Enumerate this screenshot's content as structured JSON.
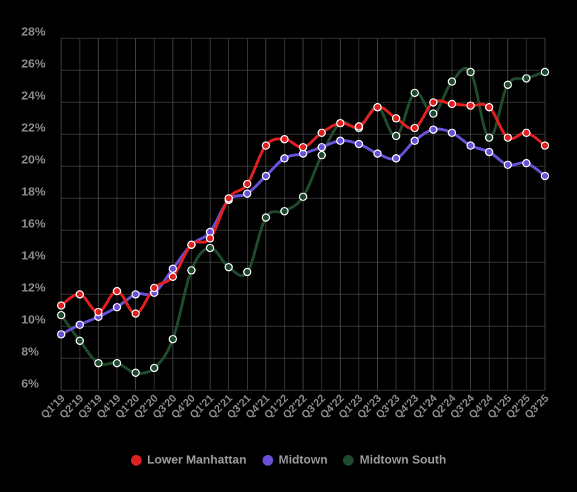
{
  "chart_data": {
    "type": "line",
    "categories": [
      "Q1'19",
      "Q2'19",
      "Q3'19",
      "Q4'19",
      "Q1'20",
      "Q2'20",
      "Q3'20",
      "Q4'20",
      "Q1'21",
      "Q2'21",
      "Q3'21",
      "Q4'21",
      "Q1'22",
      "Q2'22",
      "Q3'22",
      "Q4'22",
      "Q1'23",
      "Q2'23",
      "Q3'23",
      "Q4'23",
      "Q1'24",
      "Q2'24",
      "Q3'24",
      "Q4'24",
      "Q1'25",
      "Q2'25",
      "Q3'25"
    ],
    "y_ticks": [
      "6%",
      "8%",
      "10%",
      "12%",
      "14%",
      "16%",
      "18%",
      "20%",
      "22%",
      "24%",
      "26%",
      "28%"
    ],
    "ylim": [
      6,
      28
    ],
    "grid": true,
    "legend_position": "bottom",
    "series": [
      {
        "name": "Lower Manhattan",
        "color": "#e02020",
        "values": [
          11.3,
          12.0,
          10.9,
          12.2,
          10.8,
          12.4,
          13.1,
          15.1,
          15.5,
          18.0,
          18.9,
          21.3,
          21.7,
          21.2,
          22.1,
          22.7,
          22.5,
          23.7,
          23.0,
          22.4,
          24.0,
          23.9,
          23.8,
          23.7,
          21.8,
          22.1,
          21.3
        ]
      },
      {
        "name": "Midtown",
        "color": "#6a50d8",
        "values": [
          9.5,
          10.1,
          10.6,
          11.2,
          12.0,
          12.1,
          13.6,
          15.1,
          15.9,
          17.9,
          18.3,
          19.4,
          20.5,
          20.8,
          21.2,
          21.6,
          21.4,
          20.8,
          20.5,
          21.6,
          22.3,
          22.1,
          21.3,
          20.9,
          20.1,
          20.2,
          19.4
        ]
      },
      {
        "name": "Midtown South",
        "color": "#1f4a2e",
        "values": [
          10.7,
          9.1,
          7.7,
          7.7,
          7.1,
          7.4,
          9.2,
          13.5,
          14.9,
          13.7,
          13.4,
          16.8,
          17.2,
          18.1,
          20.7,
          22.7,
          22.4,
          23.7,
          21.9,
          24.6,
          23.3,
          25.3,
          25.9,
          21.8,
          25.1,
          25.5,
          25.9
        ]
      }
    ]
  }
}
